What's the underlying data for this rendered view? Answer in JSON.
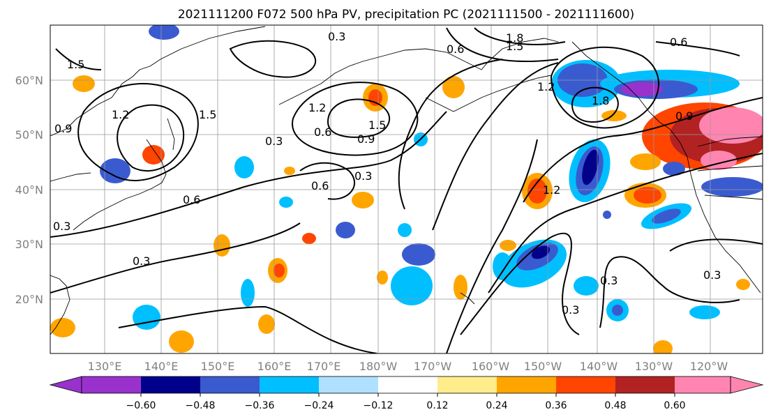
{
  "title": "2021111200 F072 500 hPa PV, precipitation PC (2021111500 - 2021111600)",
  "map": {
    "lat_labels": [
      "60°N",
      "50°N",
      "40°N",
      "30°N",
      "20°N"
    ],
    "lon_labels": [
      "130°E",
      "140°E",
      "150°E",
      "160°E",
      "170°E",
      "180°W",
      "170°W",
      "160°W",
      "150°W",
      "140°W",
      "130°W",
      "120°W"
    ],
    "grid": true,
    "contour_labels": [
      "0.3",
      "0.6",
      "0.9",
      "1.2",
      "1.5",
      "1.8"
    ]
  },
  "colorbar": {
    "ticks": [
      "−0.60",
      "−0.48",
      "−0.36",
      "−0.24",
      "−0.12",
      "0.12",
      "0.24",
      "0.36",
      "0.48",
      "0.60"
    ],
    "colors": [
      "#9932cc",
      "#00008b",
      "#3a5bd0",
      "#00bfff",
      "#b0e0ff",
      "#ffffff",
      "#ffec8b",
      "#ffa500",
      "#ff4500",
      "#b22222",
      "#ff85b0"
    ],
    "extend": "both"
  },
  "colors": {
    "neg_strong": "#00008b",
    "neg_mid": "#3a5bd0",
    "neg_light": "#00bfff",
    "neg_pale": "#b0e0ff",
    "pos_pale": "#ffec8b",
    "pos_mid": "#ffa500",
    "pos_strong": "#ff4500",
    "pos_deep": "#b22222",
    "pos_max": "#ff85b0",
    "neg_max": "#9932cc"
  }
}
